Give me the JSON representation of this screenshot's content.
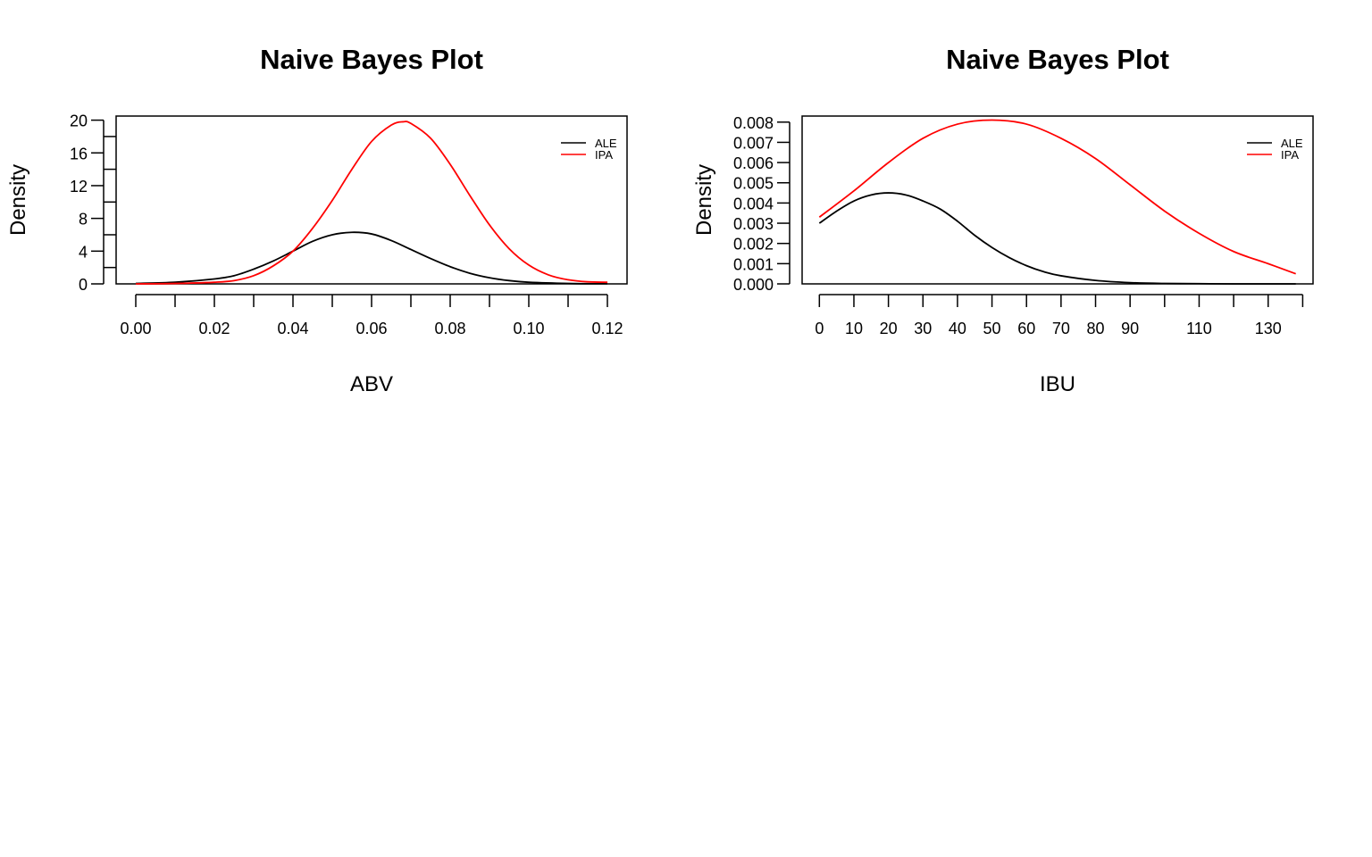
{
  "chart_data": [
    {
      "type": "line",
      "title": "Naive Bayes Plot",
      "xlabel": "ABV",
      "ylabel": "Density",
      "xlim": [
        -0.005,
        0.125
      ],
      "ylim": [
        0,
        20.5
      ],
      "x_ticks": [
        0.0,
        0.02,
        0.04,
        0.06,
        0.08,
        0.1,
        0.12
      ],
      "x_tick_labels": [
        "0.00",
        "0.02",
        "0.04",
        "0.06",
        "0.08",
        "0.10",
        "0.12"
      ],
      "x_minor_ticks": [
        0.01,
        0.03,
        0.05,
        0.07,
        0.09,
        0.11
      ],
      "y_ticks": [
        0,
        4,
        8,
        12,
        16,
        20
      ],
      "y_tick_labels": [
        "0",
        "4",
        "8",
        "12",
        "16",
        "20"
      ],
      "y_minor_ticks": [
        2,
        6,
        10,
        14,
        18
      ],
      "legend_position": "top-right",
      "series": [
        {
          "name": "ALE",
          "color": "#000000",
          "x": [
            0.0,
            0.01,
            0.02,
            0.025,
            0.03,
            0.035,
            0.04,
            0.045,
            0.05,
            0.055,
            0.06,
            0.065,
            0.07,
            0.075,
            0.08,
            0.085,
            0.09,
            0.095,
            0.1,
            0.11,
            0.12
          ],
          "y": [
            0.05,
            0.2,
            0.6,
            1.0,
            1.8,
            2.8,
            4.0,
            5.2,
            6.0,
            6.3,
            6.1,
            5.3,
            4.2,
            3.1,
            2.1,
            1.3,
            0.75,
            0.4,
            0.2,
            0.05,
            0.01
          ]
        },
        {
          "name": "IPA",
          "color": "#ff0000",
          "x": [
            0.0,
            0.01,
            0.02,
            0.025,
            0.03,
            0.035,
            0.04,
            0.045,
            0.05,
            0.055,
            0.06,
            0.065,
            0.068,
            0.07,
            0.075,
            0.08,
            0.085,
            0.09,
            0.095,
            0.1,
            0.105,
            0.11,
            0.115,
            0.12
          ],
          "y": [
            0.0,
            0.05,
            0.2,
            0.4,
            1.0,
            2.2,
            4.0,
            6.8,
            10.2,
            14.0,
            17.4,
            19.4,
            19.8,
            19.6,
            17.8,
            14.6,
            10.8,
            7.2,
            4.3,
            2.3,
            1.1,
            0.5,
            0.25,
            0.2
          ]
        }
      ]
    },
    {
      "type": "line",
      "title": "Naive Bayes Plot",
      "xlabel": "IBU",
      "ylabel": "Density",
      "xlim": [
        -5,
        143
      ],
      "ylim": [
        0,
        0.0083
      ],
      "x_ticks": [
        0,
        10,
        20,
        30,
        40,
        50,
        60,
        70,
        80,
        90,
        110,
        130
      ],
      "x_tick_labels": [
        "0",
        "10",
        "20",
        "30",
        "40",
        "50",
        "60",
        "70",
        "80",
        "90",
        "110",
        "130"
      ],
      "x_minor_ticks": [
        100,
        120,
        140
      ],
      "y_ticks": [
        0,
        0.001,
        0.002,
        0.003,
        0.004,
        0.005,
        0.006,
        0.007,
        0.008
      ],
      "y_tick_labels": [
        "0.000",
        "0.001",
        "0.002",
        "0.003",
        "0.004",
        "0.005",
        "0.006",
        "0.007",
        "0.008"
      ],
      "legend_position": "top-right",
      "series": [
        {
          "name": "ALE",
          "color": "#000000",
          "x": [
            0,
            5,
            10,
            15,
            20,
            25,
            30,
            35,
            40,
            45,
            50,
            55,
            60,
            65,
            70,
            80,
            90,
            100,
            110,
            120,
            138
          ],
          "y": [
            0.003,
            0.0036,
            0.0041,
            0.0044,
            0.0045,
            0.0044,
            0.0041,
            0.0037,
            0.0031,
            0.0024,
            0.0018,
            0.0013,
            0.0009,
            0.0006,
            0.0004,
            0.00017,
            6e-05,
            2e-05,
            1e-05,
            0.0,
            0.0
          ]
        },
        {
          "name": "IPA",
          "color": "#ff0000",
          "x": [
            0,
            10,
            20,
            30,
            40,
            50,
            60,
            70,
            80,
            90,
            100,
            110,
            120,
            130,
            138
          ],
          "y": [
            0.0033,
            0.0046,
            0.006,
            0.0072,
            0.0079,
            0.0081,
            0.0079,
            0.0072,
            0.0062,
            0.0049,
            0.0036,
            0.0025,
            0.0016,
            0.001,
            0.0005
          ]
        }
      ]
    }
  ]
}
